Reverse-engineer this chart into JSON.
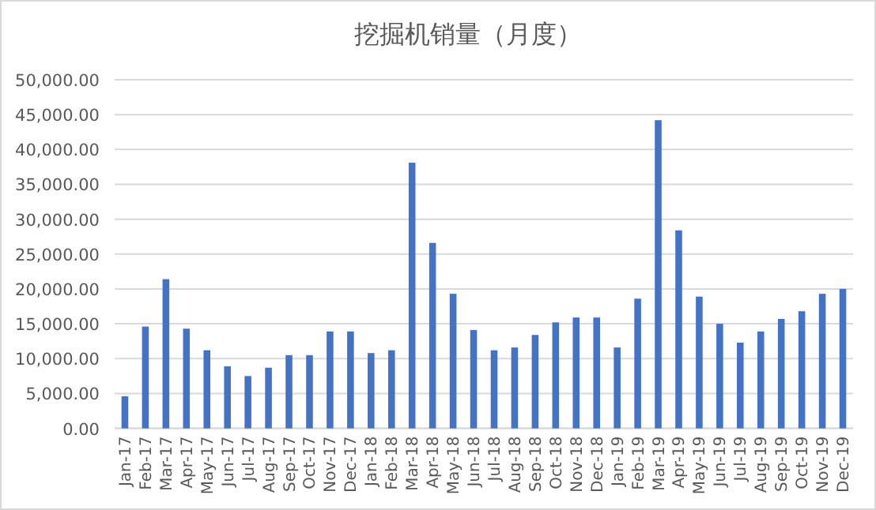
{
  "chart_data": {
    "type": "bar",
    "title": "挖掘机销量（月度）",
    "categories": [
      "Jan-17",
      "Feb-17",
      "Mar-17",
      "Apr-17",
      "May-17",
      "Jun-17",
      "Jul-17",
      "Aug-17",
      "Sep-17",
      "Oct-17",
      "Nov-17",
      "Dec-17",
      "Jan-18",
      "Feb-18",
      "Mar-18",
      "Apr-18",
      "May-18",
      "Jun-18",
      "Jul-18",
      "Aug-18",
      "Sep-18",
      "Oct-18",
      "Nov-18",
      "Dec-18",
      "Jan-19",
      "Feb-19",
      "Mar-19",
      "Apr-19",
      "May-19",
      "Jun-19",
      "Jul-19",
      "Aug-19",
      "Sep-19",
      "Oct-19",
      "Nov-19",
      "Dec-19"
    ],
    "values": [
      4600,
      14600,
      21400,
      14300,
      11200,
      8900,
      7500,
      8700,
      10500,
      10500,
      13900,
      13900,
      10800,
      11200,
      38100,
      26600,
      19300,
      14100,
      11200,
      11600,
      13400,
      15200,
      15900,
      15900,
      11600,
      18600,
      44200,
      28400,
      18900,
      15000,
      12300,
      13900,
      15700,
      16800,
      19300,
      20000
    ],
    "color": "#4472c4",
    "ylim": [
      0,
      50000
    ],
    "yticks": [
      {
        "value": 0,
        "label": "0.00"
      },
      {
        "value": 5000,
        "label": "5,000.00"
      },
      {
        "value": 10000,
        "label": "10,000.00"
      },
      {
        "value": 15000,
        "label": "15,000.00"
      },
      {
        "value": 20000,
        "label": "20,000.00"
      },
      {
        "value": 25000,
        "label": "25,000.00"
      },
      {
        "value": 30000,
        "label": "30,000.00"
      },
      {
        "value": 35000,
        "label": "35,000.00"
      },
      {
        "value": 40000,
        "label": "40,000.00"
      },
      {
        "value": 45000,
        "label": "45,000.00"
      },
      {
        "value": 50000,
        "label": "50,000.00"
      }
    ],
    "grid": "y"
  }
}
